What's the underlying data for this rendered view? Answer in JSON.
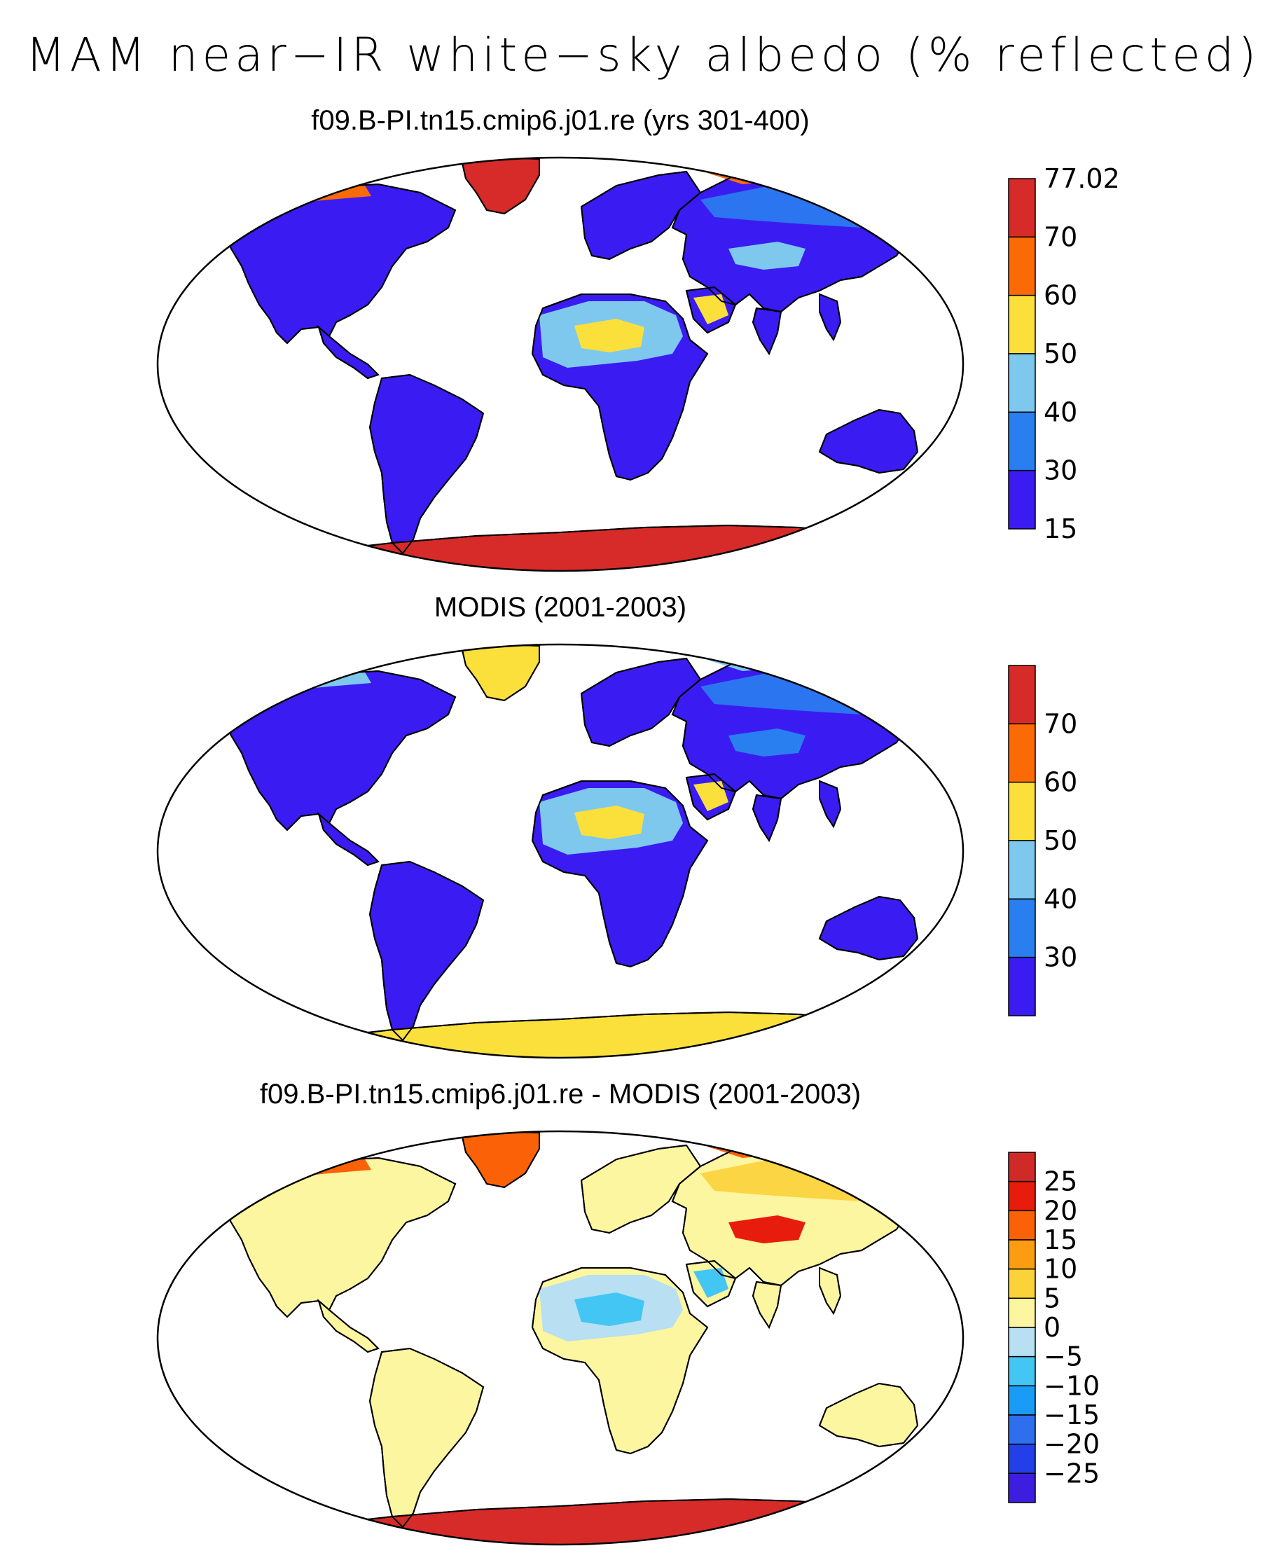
{
  "figure": {
    "title": "MAM near−IR white−sky albedo (% reflected)"
  },
  "palettes": {
    "absolute": [
      "#3a1cf2",
      "#2a7ff0",
      "#7ec8ee",
      "#fbe03c",
      "#fc6a08",
      "#d62b28"
    ],
    "difference": [
      "#3d1ee0",
      "#2340e8",
      "#2f6fee",
      "#1a9bf5",
      "#43c6f4",
      "#b8dff2",
      "#fdf6a0",
      "#fcd23a",
      "#fc9c10",
      "#fb6208",
      "#e81c0c",
      "#cf2a28"
    ]
  },
  "panels": [
    {
      "title": "f09.B-PI.tn15.cmip6.j01.re (yrs 301-400)",
      "scale": "absolute",
      "colorbar": {
        "labels": [
          "77.02",
          "70",
          "60",
          "50",
          "40",
          "30",
          "15"
        ],
        "label_mode": "edges"
      },
      "fields": {
        "continents": "#3a1cf2",
        "greenland": "#d62b28",
        "antarctica": "#d62b28",
        "arctic_coast": "#fc6a08",
        "sahara": "#7ec8ee",
        "sahara_core": "#fbe03c",
        "siberia": "#2a7ff0",
        "tibet": "#7ec8ee"
      }
    },
    {
      "title": "MODIS (2001-2003)",
      "scale": "absolute",
      "colorbar": {
        "labels": [
          "70",
          "60",
          "50",
          "40",
          "30"
        ],
        "label_mode": "inner"
      },
      "fields": {
        "continents": "#3a1cf2",
        "greenland": "#fbe03c",
        "antarctica": "#fbe03c",
        "arctic_coast": "#7ec8ee",
        "sahara": "#7ec8ee",
        "sahara_core": "#fbe03c",
        "siberia": "#2a7ff0",
        "tibet": "#2a7ff0"
      }
    },
    {
      "title": "f09.B-PI.tn15.cmip6.j01.re - MODIS (2001-2003)",
      "scale": "difference",
      "colorbar": {
        "labels": [
          "25",
          "20",
          "15",
          "10",
          "5",
          "0",
          "−5",
          "−10",
          "−15",
          "−20",
          "−25"
        ],
        "label_mode": "inner"
      },
      "fields": {
        "continents": "#fdf6a0",
        "greenland": "#fb6208",
        "antarctica": "#d62b28",
        "arctic_coast": "#fb6208",
        "sahara": "#b8dff2",
        "sahara_core": "#43c6f4",
        "siberia": "#fcd23a",
        "tibet": "#e81c0c"
      }
    }
  ]
}
